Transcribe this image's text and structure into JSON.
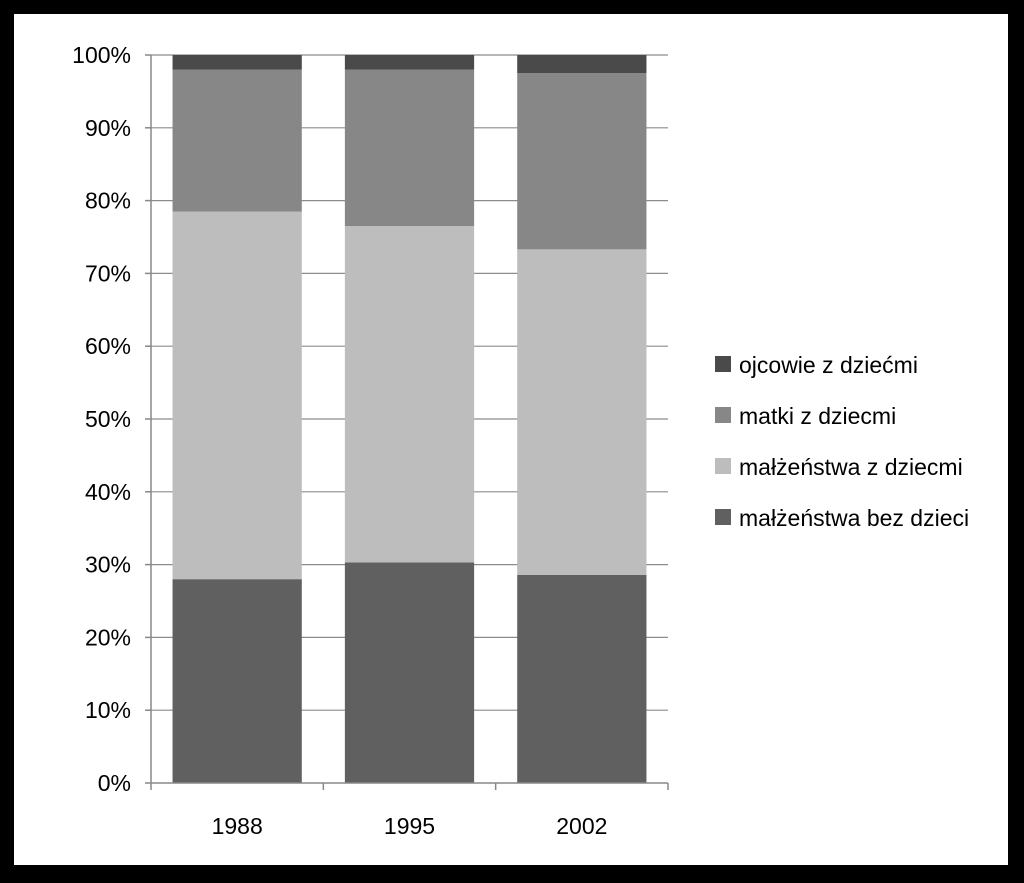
{
  "chart_data": {
    "type": "bar",
    "stacked": true,
    "percent_stacked": true,
    "categories": [
      "1988",
      "1995",
      "2002"
    ],
    "series": [
      {
        "name": "małżeństwa bez dzieci",
        "values": [
          28.0,
          30.3,
          28.6
        ],
        "color": "#606060"
      },
      {
        "name": "małżeństwa z dziecmi",
        "values": [
          50.5,
          46.2,
          44.7
        ],
        "color": "#bdbdbd"
      },
      {
        "name": "matki z dziecmi",
        "values": [
          19.5,
          21.5,
          24.2
        ],
        "color": "#878787"
      },
      {
        "name": "ojcowie z dziećmi",
        "values": [
          2.0,
          2.0,
          2.5
        ],
        "color": "#4a4a4a"
      }
    ],
    "legend_order": [
      "ojcowie z dziećmi",
      "matki z dziecmi",
      "małżeństwa z dziecmi",
      "małżeństwa bez dzieci"
    ],
    "yticks": [
      "0%",
      "10%",
      "20%",
      "30%",
      "40%",
      "50%",
      "60%",
      "70%",
      "80%",
      "90%",
      "100%"
    ],
    "ylim": [
      0,
      100
    ],
    "grid": true,
    "legend_position": "right",
    "title": "",
    "xlabel": "",
    "ylabel": ""
  }
}
